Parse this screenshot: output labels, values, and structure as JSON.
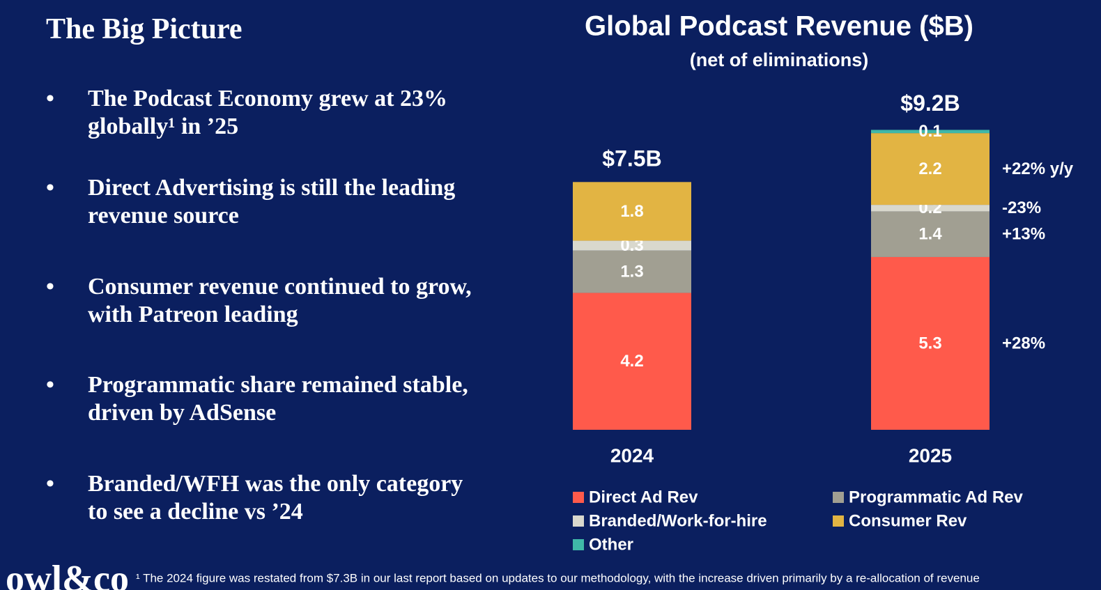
{
  "heading": "The Big Picture",
  "bullets": [
    "The Podcast Economy grew at 23% globally¹ in ’25",
    "Direct Advertising is still the leading revenue source",
    "Consumer revenue continued to grow, with Patreon leading",
    "Programmatic share remained stable, driven by AdSense",
    "Branded/WFH was the only category to see a decline vs ’24"
  ],
  "chart_data": {
    "type": "stacked-bar",
    "title": "Global Podcast Revenue ($B)",
    "subtitle": "(net of eliminations)",
    "categories": [
      "2024",
      "2025"
    ],
    "ylim": [
      0,
      10
    ],
    "totals": [
      {
        "value": 7.5,
        "label": "$7.5B"
      },
      {
        "value": 9.2,
        "label": "$9.2B"
      }
    ],
    "series": [
      {
        "name": "Direct Ad Rev",
        "color": "#ff5a4b",
        "values": [
          4.2,
          5.3
        ],
        "change": "+28%"
      },
      {
        "name": "Programmatic Ad Rev",
        "color": "#a19f92",
        "values": [
          1.3,
          1.4
        ],
        "change": "+13%"
      },
      {
        "name": "Branded/Work-for-hire",
        "color": "#d9d8cd",
        "values": [
          0.3,
          0.2
        ],
        "change": "-23%"
      },
      {
        "name": "Consumer Rev",
        "color": "#e2b443",
        "values": [
          1.8,
          2.2
        ],
        "change": "+22% y/y"
      },
      {
        "name": "Other",
        "color": "#3fb8a8",
        "values": [
          null,
          0.1
        ]
      }
    ],
    "legend": "bottom"
  },
  "footnote": "¹ The 2024 figure was restated from $7.3B in our last report based on updates to our methodology, with the increase driven primarily by a re-allocation of revenue",
  "logo": "owl&co"
}
